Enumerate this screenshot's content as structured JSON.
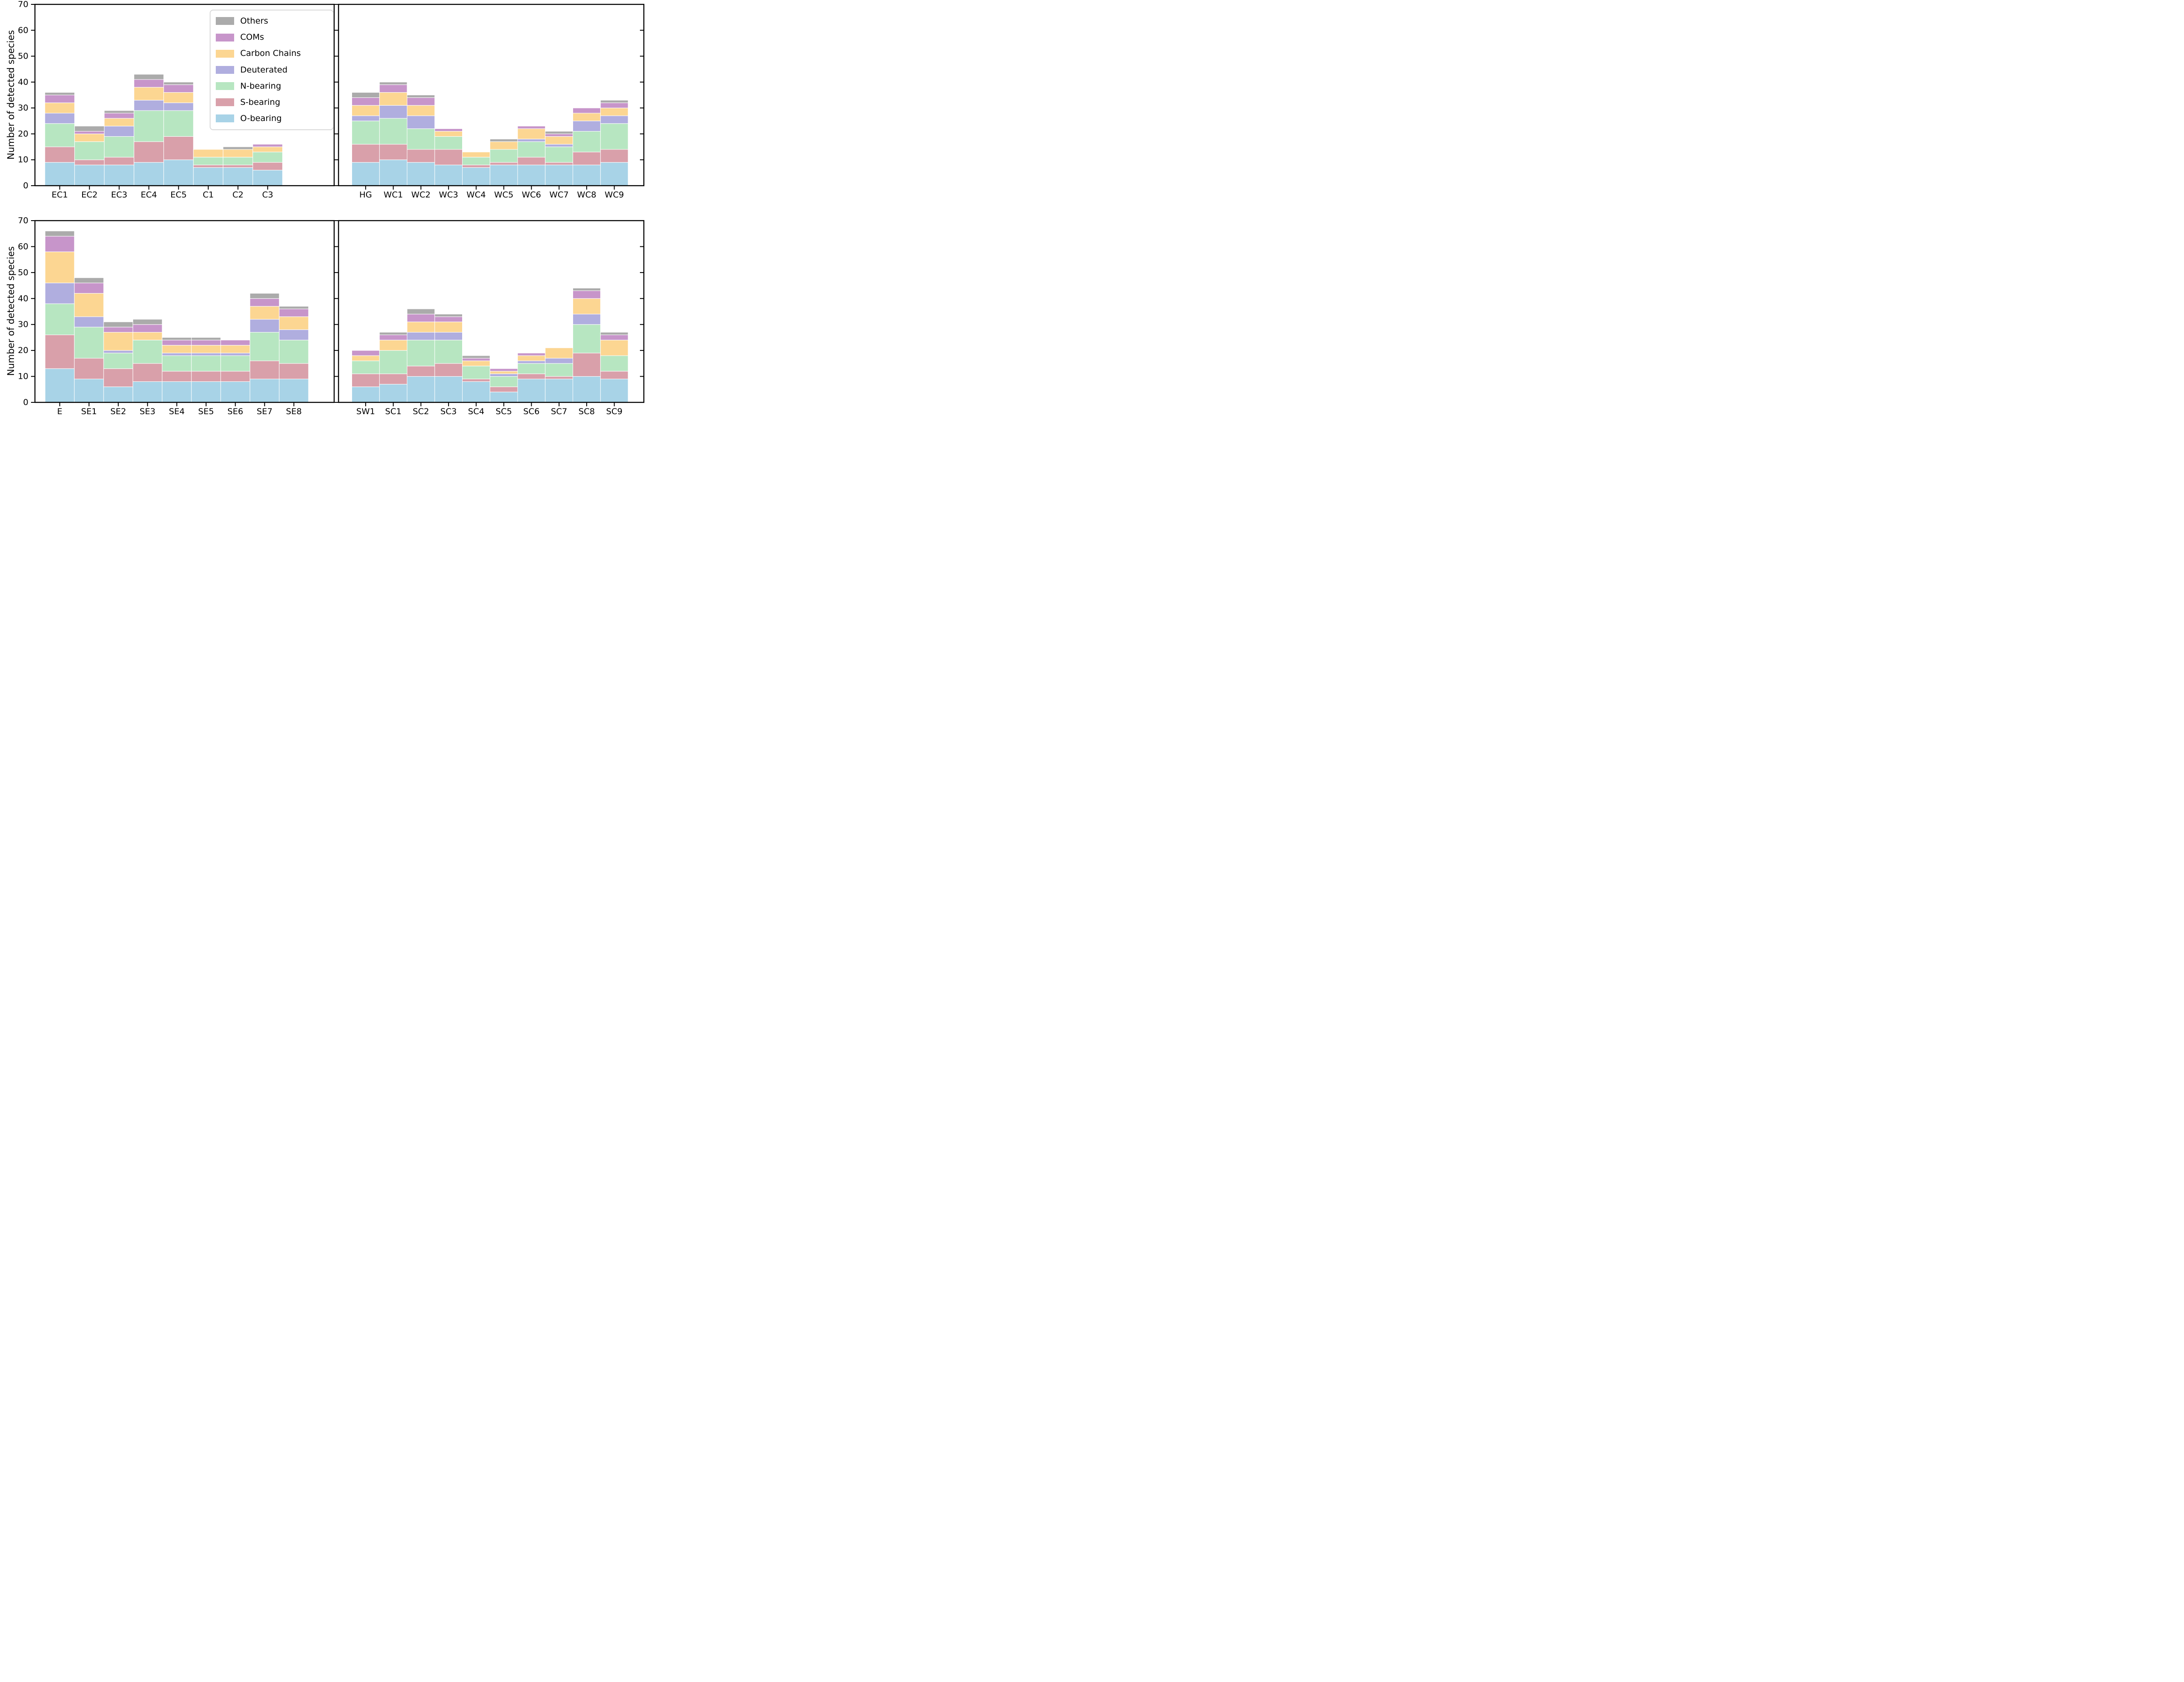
{
  "chart_data": {
    "type": "bar",
    "variant": "stacked",
    "title": "",
    "ylabel": "Number of detected species",
    "ylim": [
      0,
      70
    ],
    "yticks": [
      0,
      10,
      20,
      30,
      40,
      50,
      60,
      70
    ],
    "grid": false,
    "legend_position": "upper area of top-left panel",
    "series_order": [
      "O-bearing",
      "S-bearing",
      "N-bearing",
      "Deuterated",
      "Carbon Chains",
      "COMs",
      "Others"
    ],
    "colors": {
      "O-bearing": "#a8d3e7",
      "S-bearing": "#d9a0aa",
      "N-bearing": "#b7e6c1",
      "Deuterated": "#b0aedf",
      "Carbon Chains": "#fcd692",
      "COMs": "#c795ca",
      "Others": "#ababab",
      "bar_edge": "#ffffff",
      "axis": "#000000",
      "legend_border": "#d9d9d9"
    },
    "legend_items": [
      {
        "label": "Others",
        "key": "Others"
      },
      {
        "label": "COMs",
        "key": "COMs"
      },
      {
        "label": "Carbon Chains",
        "key": "Carbon Chains"
      },
      {
        "label": "Deuterated",
        "key": "Deuterated"
      },
      {
        "label": "N-bearing",
        "key": "N-bearing"
      },
      {
        "label": "S-bearing",
        "key": "S-bearing"
      },
      {
        "label": "O-bearing",
        "key": "O-bearing"
      }
    ],
    "panels": [
      {
        "position": "top-left",
        "categories": [
          "EC1",
          "EC2",
          "EC3",
          "EC4",
          "EC5",
          "C1",
          "C2",
          "C3"
        ],
        "series": {
          "O-bearing": [
            9,
            8,
            8,
            9,
            10,
            7,
            7,
            6
          ],
          "S-bearing": [
            6,
            2,
            3,
            8,
            9,
            1,
            1,
            3
          ],
          "N-bearing": [
            9,
            7,
            8,
            12,
            10,
            3,
            3,
            4
          ],
          "Deuterated": [
            4,
            0,
            4,
            4,
            3,
            0,
            0,
            0
          ],
          "Carbon Chains": [
            4,
            3,
            3,
            5,
            4,
            3,
            3,
            2
          ],
          "COMs": [
            3,
            1,
            2,
            3,
            3,
            0,
            0,
            1
          ],
          "Others": [
            1,
            2,
            1,
            2,
            1,
            0,
            1,
            0
          ]
        },
        "totals": [
          36,
          23,
          29,
          43,
          40,
          14,
          15,
          16
        ]
      },
      {
        "position": "top-right",
        "categories": [
          "HG",
          "WC1",
          "WC2",
          "WC3",
          "WC4",
          "WC5",
          "WC6",
          "WC7",
          "WC8",
          "WC9"
        ],
        "series": {
          "O-bearing": [
            9,
            10,
            9,
            8,
            7,
            8,
            8,
            8,
            8,
            9
          ],
          "S-bearing": [
            7,
            6,
            5,
            6,
            1,
            1,
            3,
            1,
            5,
            5
          ],
          "N-bearing": [
            9,
            10,
            8,
            5,
            3,
            5,
            6,
            6,
            8,
            10
          ],
          "Deuterated": [
            2,
            5,
            5,
            0,
            0,
            0,
            1,
            1,
            4,
            3
          ],
          "Carbon Chains": [
            4,
            5,
            4,
            2,
            2,
            3,
            4,
            3,
            3,
            3
          ],
          "COMs": [
            3,
            3,
            3,
            1,
            0,
            0,
            1,
            1,
            2,
            2
          ],
          "Others": [
            2,
            1,
            1,
            0,
            0,
            1,
            0,
            1,
            0,
            1
          ]
        },
        "totals": [
          36,
          40,
          35,
          22,
          13,
          18,
          23,
          21,
          30,
          33
        ]
      },
      {
        "position": "bottom-left",
        "categories": [
          "E",
          "SE1",
          "SE2",
          "SE3",
          "SE4",
          "SE5",
          "SE6",
          "SE7",
          "SE8"
        ],
        "series": {
          "O-bearing": [
            13,
            9,
            6,
            8,
            8,
            8,
            8,
            9,
            9
          ],
          "S-bearing": [
            13,
            8,
            7,
            7,
            4,
            4,
            4,
            7,
            6
          ],
          "N-bearing": [
            12,
            12,
            6,
            9,
            6,
            6,
            6,
            11,
            9
          ],
          "Deuterated": [
            8,
            4,
            1,
            0,
            1,
            1,
            1,
            5,
            4
          ],
          "Carbon Chains": [
            12,
            9,
            7,
            3,
            3,
            3,
            3,
            5,
            5
          ],
          "COMs": [
            6,
            4,
            2,
            3,
            2,
            2,
            2,
            3,
            3
          ],
          "Others": [
            2,
            2,
            2,
            2,
            1,
            1,
            0,
            2,
            1
          ]
        },
        "totals": [
          66,
          48,
          31,
          32,
          25,
          25,
          24,
          42,
          37
        ]
      },
      {
        "position": "bottom-right",
        "categories": [
          "SW1",
          "SC1",
          "SC2",
          "SC3",
          "SC4",
          "SC5",
          "SC6",
          "SC7",
          "SC8",
          "SC9"
        ],
        "series": {
          "O-bearing": [
            6,
            7,
            10,
            10,
            8,
            4,
            9,
            9,
            10,
            9
          ],
          "S-bearing": [
            5,
            4,
            4,
            5,
            1,
            2,
            2,
            1,
            9,
            3
          ],
          "N-bearing": [
            5,
            9,
            10,
            9,
            5,
            4,
            4,
            5,
            11,
            6
          ],
          "Deuterated": [
            0,
            0,
            3,
            3,
            0,
            1,
            1,
            2,
            4,
            0
          ],
          "Carbon Chains": [
            2,
            4,
            4,
            4,
            2,
            1,
            2,
            4,
            6,
            6
          ],
          "COMs": [
            2,
            2,
            3,
            2,
            1,
            1,
            1,
            0,
            3,
            2
          ],
          "Others": [
            0,
            1,
            2,
            1,
            1,
            0,
            0,
            0,
            1,
            1
          ]
        },
        "totals": [
          20,
          27,
          36,
          34,
          18,
          13,
          19,
          21,
          44,
          27
        ]
      }
    ]
  }
}
